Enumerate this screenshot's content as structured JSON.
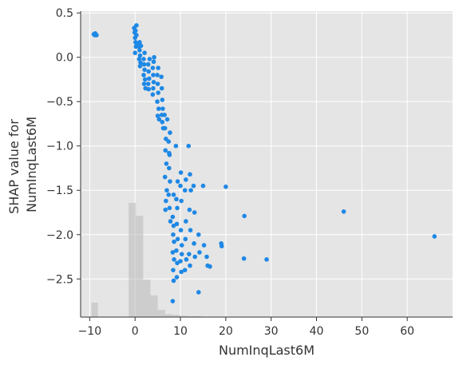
{
  "chart_data": {
    "type": "scatter",
    "title": "",
    "xlabel": "NumInqLast6M",
    "ylabel_lines": [
      "SHAP value for",
      "NumInqLast6M"
    ],
    "xlim": [
      -12,
      70
    ],
    "ylim": [
      -2.93,
      0.52
    ],
    "x_ticks": [
      -10,
      0,
      10,
      20,
      30,
      40,
      50,
      60
    ],
    "x_tick_labels": [
      "−10",
      "0",
      "10",
      "20",
      "30",
      "40",
      "50",
      "60"
    ],
    "y_ticks": [
      0.5,
      0.0,
      -0.5,
      -1.0,
      -1.5,
      -2.0,
      -2.5
    ],
    "y_tick_labels": [
      "0.5",
      "0.0",
      "−0.5",
      "−1.0",
      "−1.5",
      "−2.0",
      "−2.5"
    ],
    "grid": true,
    "background_color": "#e5e5e5",
    "point_color": "#1e88e5",
    "histogram_color": "#b0b0b0",
    "histogram_note": "background distribution of feature values (relative bar heights)",
    "histogram": [
      {
        "x0": -9.6,
        "x1": -8.2,
        "rel": 0.1
      },
      {
        "x0": -1.4,
        "x1": 0.2,
        "rel": 0.79
      },
      {
        "x0": 0.2,
        "x1": 1.8,
        "rel": 0.7
      },
      {
        "x0": 1.8,
        "x1": 3.4,
        "rel": 0.26
      },
      {
        "x0": 3.4,
        "x1": 5.0,
        "rel": 0.15
      },
      {
        "x0": 5.0,
        "x1": 6.6,
        "rel": 0.05
      },
      {
        "x0": 6.6,
        "x1": 8.2,
        "rel": 0.02
      },
      {
        "x0": 8.2,
        "x1": 9.8,
        "rel": 0.015
      },
      {
        "x0": 9.8,
        "x1": 11.4,
        "rel": 0.01
      },
      {
        "x0": 11.4,
        "x1": 14.6,
        "rel": 0.006
      }
    ],
    "points": [
      {
        "x": -9.1,
        "y": 0.26
      },
      {
        "x": -8.9,
        "y": 0.25
      },
      {
        "x": -8.7,
        "y": 0.26
      },
      {
        "x": -8.5,
        "y": 0.25
      },
      {
        "x": -8.8,
        "y": 0.27
      },
      {
        "x": -0.2,
        "y": 0.33
      },
      {
        "x": -0.1,
        "y": 0.28
      },
      {
        "x": 0.0,
        "y": 0.22
      },
      {
        "x": 0.1,
        "y": 0.17
      },
      {
        "x": 0.2,
        "y": 0.12
      },
      {
        "x": 0.3,
        "y": 0.36
      },
      {
        "x": 0.0,
        "y": 0.05
      },
      {
        "x": 0.4,
        "y": 0.15
      },
      {
        "x": 0.1,
        "y": 0.3
      },
      {
        "x": 0.3,
        "y": 0.25
      },
      {
        "x": 0.9,
        "y": 0.12
      },
      {
        "x": 1.0,
        "y": 0.08
      },
      {
        "x": 1.1,
        "y": 0.02
      },
      {
        "x": 0.9,
        "y": -0.02
      },
      {
        "x": 1.2,
        "y": -0.06
      },
      {
        "x": 1.0,
        "y": 0.17
      },
      {
        "x": 1.3,
        "y": 0.13
      },
      {
        "x": 1.1,
        "y": -0.1
      },
      {
        "x": 1.9,
        "y": -0.02
      },
      {
        "x": 2.0,
        "y": -0.08
      },
      {
        "x": 2.1,
        "y": -0.14
      },
      {
        "x": 1.9,
        "y": -0.2
      },
      {
        "x": 2.2,
        "y": -0.25
      },
      {
        "x": 2.0,
        "y": -0.3
      },
      {
        "x": 2.1,
        "y": 0.05
      },
      {
        "x": 2.3,
        "y": -0.35
      },
      {
        "x": 2.9,
        "y": -0.08
      },
      {
        "x": 3.0,
        "y": -0.16
      },
      {
        "x": 3.1,
        "y": -0.24
      },
      {
        "x": 2.9,
        "y": -0.3
      },
      {
        "x": 3.2,
        "y": -0.02
      },
      {
        "x": 3.0,
        "y": -0.36
      },
      {
        "x": 3.9,
        "y": -0.12
      },
      {
        "x": 4.0,
        "y": -0.2
      },
      {
        "x": 4.1,
        "y": -0.28
      },
      {
        "x": 4.0,
        "y": -0.35
      },
      {
        "x": 4.2,
        "y": 0.0
      },
      {
        "x": 3.9,
        "y": -0.42
      },
      {
        "x": 4.1,
        "y": -0.05
      },
      {
        "x": 4.9,
        "y": -0.2
      },
      {
        "x": 5.0,
        "y": -0.3
      },
      {
        "x": 5.1,
        "y": -0.4
      },
      {
        "x": 4.9,
        "y": -0.5
      },
      {
        "x": 5.2,
        "y": -0.58
      },
      {
        "x": 5.0,
        "y": -0.66
      },
      {
        "x": 5.1,
        "y": -0.12
      },
      {
        "x": 5.3,
        "y": -0.7
      },
      {
        "x": 5.8,
        "y": -0.22
      },
      {
        "x": 5.9,
        "y": -0.35
      },
      {
        "x": 6.0,
        "y": -0.48
      },
      {
        "x": 6.1,
        "y": -0.58
      },
      {
        "x": 5.9,
        "y": -0.65
      },
      {
        "x": 6.0,
        "y": -0.73
      },
      {
        "x": 6.2,
        "y": -0.8
      },
      {
        "x": 6.5,
        "y": -0.65
      },
      {
        "x": 6.6,
        "y": -0.8
      },
      {
        "x": 6.8,
        "y": -0.92
      },
      {
        "x": 6.7,
        "y": -1.05
      },
      {
        "x": 6.9,
        "y": -1.2
      },
      {
        "x": 6.6,
        "y": -1.35
      },
      {
        "x": 7.0,
        "y": -1.5
      },
      {
        "x": 6.8,
        "y": -1.62
      },
      {
        "x": 6.7,
        "y": -1.72
      },
      {
        "x": 7.1,
        "y": -0.7
      },
      {
        "x": 7.4,
        "y": -0.95
      },
      {
        "x": 7.6,
        "y": -1.1
      },
      {
        "x": 7.5,
        "y": -1.25
      },
      {
        "x": 7.7,
        "y": -1.4
      },
      {
        "x": 7.4,
        "y": -1.55
      },
      {
        "x": 7.6,
        "y": -1.7
      },
      {
        "x": 7.8,
        "y": -1.85
      },
      {
        "x": 7.5,
        "y": -1.08
      },
      {
        "x": 7.7,
        "y": -0.85
      },
      {
        "x": 8.3,
        "y": -1.8
      },
      {
        "x": 8.5,
        "y": -1.9
      },
      {
        "x": 8.4,
        "y": -2.0
      },
      {
        "x": 8.6,
        "y": -2.08
      },
      {
        "x": 8.3,
        "y": -2.2
      },
      {
        "x": 8.6,
        "y": -2.28
      },
      {
        "x": 8.4,
        "y": -2.4
      },
      {
        "x": 8.5,
        "y": -2.52
      },
      {
        "x": 8.3,
        "y": -2.75
      },
      {
        "x": 8.5,
        "y": -1.55
      },
      {
        "x": 9.1,
        "y": -1.6
      },
      {
        "x": 9.3,
        "y": -1.7
      },
      {
        "x": 9.2,
        "y": -1.88
      },
      {
        "x": 9.4,
        "y": -2.05
      },
      {
        "x": 9.1,
        "y": -2.18
      },
      {
        "x": 9.3,
        "y": -2.32
      },
      {
        "x": 9.2,
        "y": -2.48
      },
      {
        "x": 9.0,
        "y": -1.0
      },
      {
        "x": 9.4,
        "y": -1.4
      },
      {
        "x": 10.0,
        "y": -1.45
      },
      {
        "x": 10.2,
        "y": -1.62
      },
      {
        "x": 10.1,
        "y": -1.95
      },
      {
        "x": 10.3,
        "y": -2.12
      },
      {
        "x": 10.0,
        "y": -2.3
      },
      {
        "x": 10.2,
        "y": -2.42
      },
      {
        "x": 10.1,
        "y": -1.3
      },
      {
        "x": 10.3,
        "y": -2.22
      },
      {
        "x": 11.0,
        "y": -1.5
      },
      {
        "x": 11.2,
        "y": -1.85
      },
      {
        "x": 11.1,
        "y": -2.05
      },
      {
        "x": 11.3,
        "y": -2.28
      },
      {
        "x": 11.0,
        "y": -2.4
      },
      {
        "x": 11.2,
        "y": -1.38
      },
      {
        "x": 11.8,
        "y": -1.0
      },
      {
        "x": 12.1,
        "y": -1.32
      },
      {
        "x": 12.0,
        "y": -1.72
      },
      {
        "x": 12.2,
        "y": -1.95
      },
      {
        "x": 11.9,
        "y": -2.22
      },
      {
        "x": 12.1,
        "y": -2.35
      },
      {
        "x": 12.3,
        "y": -1.5
      },
      {
        "x": 12.9,
        "y": -1.45
      },
      {
        "x": 13.0,
        "y": -2.1
      },
      {
        "x": 13.2,
        "y": -2.25
      },
      {
        "x": 13.1,
        "y": -1.75
      },
      {
        "x": 14.0,
        "y": -2.0
      },
      {
        "x": 14.2,
        "y": -2.2
      },
      {
        "x": 14.0,
        "y": -2.65
      },
      {
        "x": 15.0,
        "y": -1.45
      },
      {
        "x": 15.2,
        "y": -2.12
      },
      {
        "x": 15.8,
        "y": -2.25
      },
      {
        "x": 16.0,
        "y": -2.35
      },
      {
        "x": 16.5,
        "y": -2.36
      },
      {
        "x": 19.0,
        "y": -2.1
      },
      {
        "x": 19.1,
        "y": -2.13
      },
      {
        "x": 20.0,
        "y": -1.46
      },
      {
        "x": 24.1,
        "y": -1.79
      },
      {
        "x": 24.0,
        "y": -2.27
      },
      {
        "x": 29.0,
        "y": -2.28
      },
      {
        "x": 46.0,
        "y": -1.74
      },
      {
        "x": 66.0,
        "y": -2.02
      }
    ]
  }
}
